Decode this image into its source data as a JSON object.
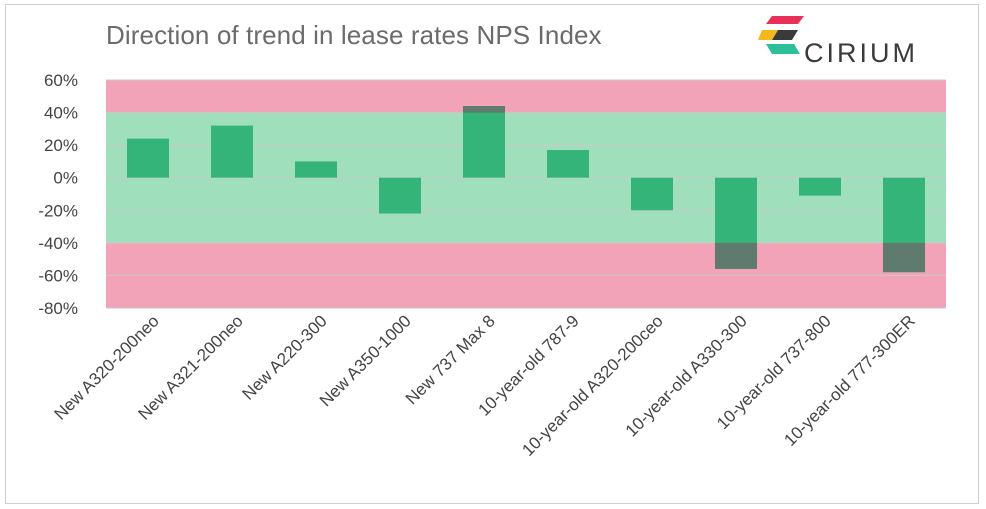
{
  "chart_data": {
    "type": "bar",
    "title": "Direction of trend in lease rates NPS Index",
    "categories": [
      "New A320-200neo",
      "New A321-200neo",
      "New A220-300",
      "New A350-1000",
      "New 737 Max 8",
      "10-year-old 787-9",
      "10-year-old A320-200ceo",
      "10-year-old A330-300",
      "10-year-old 737-800",
      "10-year-old 777-300ER"
    ],
    "values": [
      24,
      32,
      10,
      -22,
      44,
      17,
      -20,
      -56,
      -11,
      -58
    ],
    "yticks": [
      "60%",
      "40%",
      "20%",
      "0%",
      "-20%",
      "-40%",
      "-60%",
      "-80%"
    ],
    "ylim": [
      -80,
      60
    ],
    "xlabel": "",
    "ylabel": "",
    "grid": true,
    "bands": [
      {
        "from": 40,
        "to": 60,
        "color": "#f2a3b8"
      },
      {
        "from": -40,
        "to": 40,
        "color": "#9fdfbc"
      },
      {
        "from": -80,
        "to": -40,
        "color": "#f2a3b8"
      }
    ],
    "colors": {
      "bar_in_band": "#35b47a",
      "bar_out_band": "#5f7a6e",
      "gridline": "#c9c9c9"
    }
  },
  "brand": {
    "name": "CIRIUM",
    "logo_colors": [
      "#e8305a",
      "#f4b81f",
      "#2cbf9a",
      "#3a3a3a"
    ]
  }
}
